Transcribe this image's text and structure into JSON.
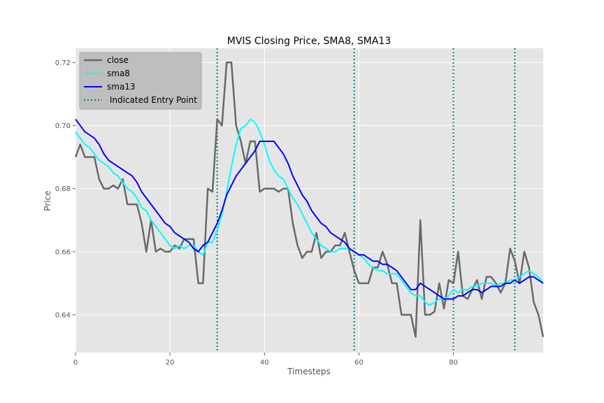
{
  "chart_data": {
    "type": "line",
    "title": "MVIS Closing Price, SMA8, SMA13",
    "xlabel": "Timesteps",
    "ylabel": "Price",
    "xlim": [
      0,
      99
    ],
    "ylim": [
      0.628,
      0.7245
    ],
    "xticks": [
      "0",
      "20",
      "40",
      "60",
      "80"
    ],
    "yticks": [
      "0.64",
      "0.66",
      "0.68",
      "0.70",
      "0.72"
    ],
    "grid": true,
    "legend_position": "top-left",
    "series": [
      {
        "name": "close",
        "color": "#696969",
        "values": [
          0.69,
          0.694,
          0.69,
          0.69,
          0.69,
          0.683,
          0.68,
          0.68,
          0.681,
          0.68,
          0.683,
          0.675,
          0.675,
          0.675,
          0.669,
          0.66,
          0.67,
          0.66,
          0.661,
          0.66,
          0.66,
          0.662,
          0.661,
          0.664,
          0.664,
          0.664,
          0.65,
          0.65,
          0.68,
          0.679,
          0.702,
          0.7,
          0.72,
          0.72,
          0.7,
          0.695,
          0.688,
          0.695,
          0.695,
          0.679,
          0.68,
          0.68,
          0.68,
          0.679,
          0.68,
          0.68,
          0.669,
          0.662,
          0.658,
          0.66,
          0.66,
          0.666,
          0.658,
          0.66,
          0.66,
          0.662,
          0.662,
          0.666,
          0.66,
          0.654,
          0.65,
          0.65,
          0.65,
          0.655,
          0.655,
          0.66,
          0.656,
          0.65,
          0.65,
          0.64,
          0.64,
          0.64,
          0.633,
          0.67,
          0.64,
          0.64,
          0.641,
          0.65,
          0.642,
          0.651,
          0.65,
          0.66,
          0.646,
          0.645,
          0.648,
          0.651,
          0.645,
          0.652,
          0.652,
          0.65,
          0.647,
          0.65,
          0.661,
          0.657,
          0.65,
          0.66,
          0.655,
          0.644,
          0.64,
          0.633
        ]
      },
      {
        "name": "sma8",
        "color": "#00ffff",
        "values": [
          0.698,
          0.696,
          0.694,
          0.693,
          0.691,
          0.689,
          0.688,
          0.687,
          0.685,
          0.684,
          0.682,
          0.68,
          0.679,
          0.677,
          0.674,
          0.673,
          0.67,
          0.668,
          0.666,
          0.664,
          0.662,
          0.661,
          0.662,
          0.661,
          0.662,
          0.662,
          0.66,
          0.659,
          0.663,
          0.663,
          0.667,
          0.672,
          0.679,
          0.687,
          0.694,
          0.699,
          0.7,
          0.702,
          0.701,
          0.698,
          0.694,
          0.689,
          0.686,
          0.684,
          0.683,
          0.68,
          0.677,
          0.675,
          0.672,
          0.669,
          0.666,
          0.664,
          0.662,
          0.661,
          0.66,
          0.66,
          0.661,
          0.661,
          0.661,
          0.66,
          0.659,
          0.658,
          0.656,
          0.655,
          0.654,
          0.654,
          0.653,
          0.653,
          0.653,
          0.651,
          0.649,
          0.647,
          0.646,
          0.646,
          0.644,
          0.643,
          0.644,
          0.645,
          0.645,
          0.646,
          0.648,
          0.647,
          0.648,
          0.648,
          0.649,
          0.649,
          0.65,
          0.65,
          0.65,
          0.649,
          0.65,
          0.65,
          0.651,
          0.651,
          0.652,
          0.653,
          0.654,
          0.653,
          0.652,
          0.65
        ]
      },
      {
        "name": "sma13",
        "color": "#0000ff",
        "values": [
          0.702,
          0.7,
          0.698,
          0.697,
          0.696,
          0.694,
          0.691,
          0.689,
          0.688,
          0.687,
          0.686,
          0.685,
          0.684,
          0.682,
          0.679,
          0.677,
          0.675,
          0.673,
          0.671,
          0.669,
          0.668,
          0.666,
          0.665,
          0.664,
          0.663,
          0.661,
          0.66,
          0.662,
          0.663,
          0.666,
          0.669,
          0.673,
          0.678,
          0.681,
          0.684,
          0.686,
          0.688,
          0.69,
          0.692,
          0.695,
          0.695,
          0.695,
          0.695,
          0.693,
          0.691,
          0.688,
          0.684,
          0.681,
          0.678,
          0.676,
          0.673,
          0.671,
          0.669,
          0.668,
          0.666,
          0.665,
          0.664,
          0.663,
          0.661,
          0.66,
          0.659,
          0.659,
          0.658,
          0.657,
          0.657,
          0.656,
          0.656,
          0.655,
          0.654,
          0.652,
          0.65,
          0.648,
          0.648,
          0.65,
          0.649,
          0.648,
          0.647,
          0.646,
          0.645,
          0.645,
          0.645,
          0.646,
          0.646,
          0.647,
          0.648,
          0.648,
          0.647,
          0.648,
          0.649,
          0.649,
          0.649,
          0.65,
          0.65,
          0.651,
          0.65,
          0.651,
          0.652,
          0.652,
          0.651,
          0.65
        ]
      }
    ],
    "entry_points": {
      "name": " Indicated Entry Point",
      "color": "#008080",
      "x": [
        30,
        59,
        80,
        93
      ]
    }
  }
}
